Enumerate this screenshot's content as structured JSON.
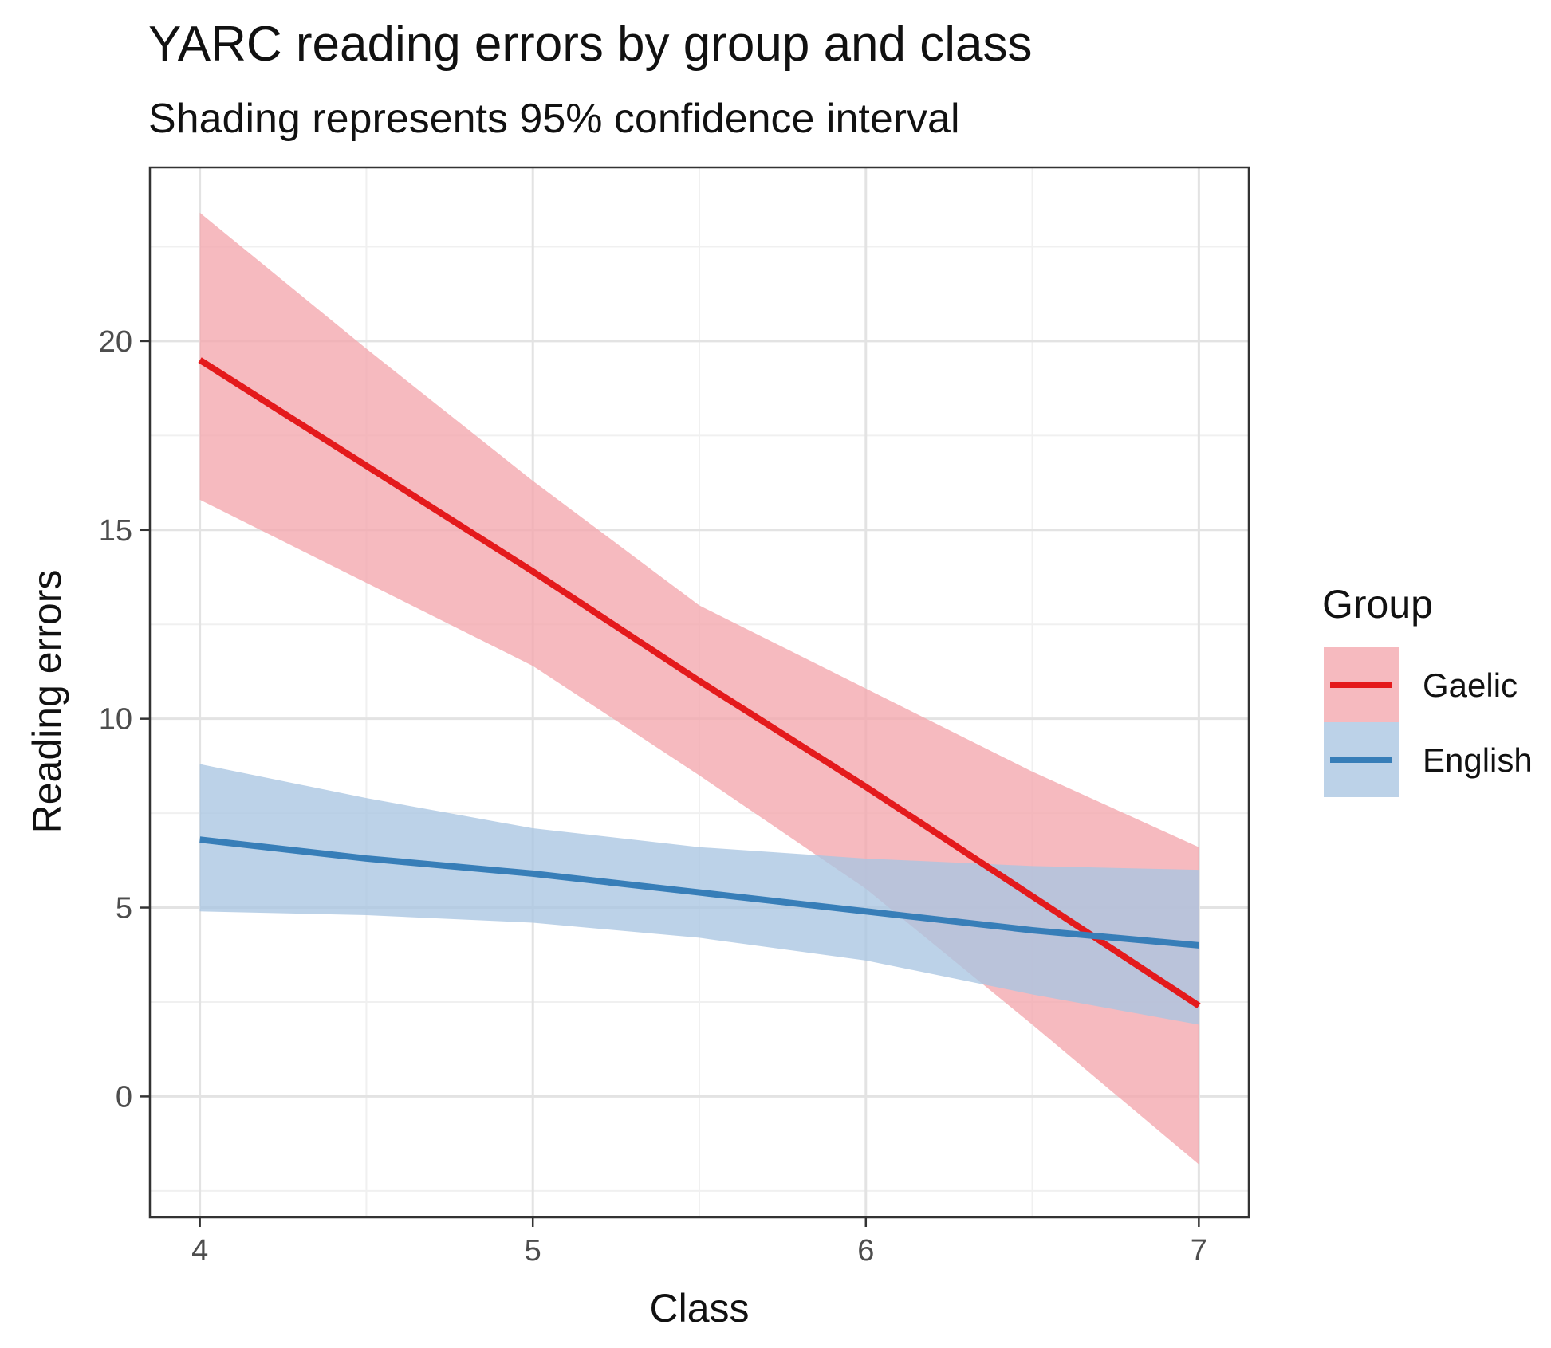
{
  "chart_data": {
    "type": "line",
    "title": "YARC reading errors by group and class",
    "subtitle": "Shading represents 95% confidence interval",
    "xlabel": "Class",
    "ylabel": "Reading errors",
    "xlim": [
      3.85,
      7.15
    ],
    "ylim": [
      -3.2,
      24.6
    ],
    "x_ticks": [
      4,
      5,
      6,
      7
    ],
    "y_ticks": [
      0,
      5,
      10,
      15,
      20
    ],
    "x_tick_labels": [
      "4",
      "5",
      "6",
      "7"
    ],
    "y_tick_labels": [
      "0",
      "5",
      "10",
      "15",
      "20"
    ],
    "grid": true,
    "legend": {
      "title": "Group",
      "position": "right"
    },
    "series": [
      {
        "name": "Gaelic",
        "color": "#e41a1c",
        "ribbon_color": "#f4a6ad",
        "x": [
          4,
          4.5,
          5,
          5.5,
          6,
          6.5,
          7
        ],
        "y": [
          19.5,
          16.7,
          13.9,
          11.0,
          8.2,
          5.3,
          2.4
        ],
        "lower": [
          15.8,
          13.6,
          11.4,
          8.5,
          5.5,
          1.9,
          -1.8
        ],
        "upper": [
          23.4,
          19.8,
          16.3,
          13.0,
          10.8,
          8.6,
          6.6
        ]
      },
      {
        "name": "English",
        "color": "#377eb8",
        "ribbon_color": "#a9c5e2",
        "x": [
          4,
          4.5,
          5,
          5.5,
          6,
          6.5,
          7
        ],
        "y": [
          6.8,
          6.3,
          5.9,
          5.4,
          4.9,
          4.4,
          4.0
        ],
        "lower": [
          4.9,
          4.8,
          4.6,
          4.2,
          3.6,
          2.7,
          1.9
        ],
        "upper": [
          8.8,
          7.9,
          7.1,
          6.6,
          6.3,
          6.1,
          6.0
        ]
      }
    ]
  }
}
